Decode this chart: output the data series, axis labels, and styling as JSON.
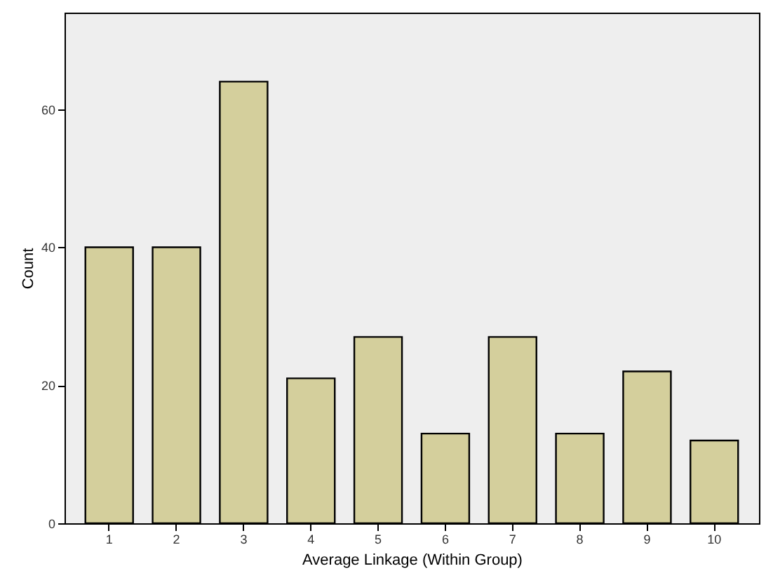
{
  "chart_data": {
    "type": "bar",
    "xlabel": "Average Linkage (Within Group)",
    "ylabel": "Count",
    "categories": [
      "1",
      "2",
      "3",
      "4",
      "5",
      "6",
      "7",
      "8",
      "9",
      "10"
    ],
    "values": [
      40,
      40,
      64,
      21,
      27,
      13,
      27,
      13,
      22,
      12
    ],
    "color": "#d4cf9c",
    "ylim": [
      0,
      74
    ],
    "yticks": [
      0,
      20,
      40,
      60
    ],
    "grid": false
  }
}
